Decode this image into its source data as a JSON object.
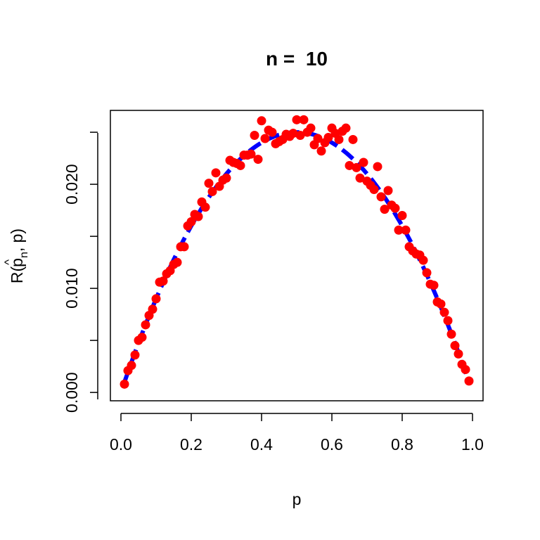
{
  "chart_data": {
    "type": "scatter",
    "title": "n =  10",
    "xlabel": "p",
    "ylabel": "R(p̂n, p)",
    "ylabel_parts": {
      "prefix": "R(",
      "symbol": "p",
      "hat": "^",
      "subscript": "n",
      "suffix": ", p)"
    },
    "xlim": [
      -0.03,
      1.03
    ],
    "ylim": [
      -0.0008,
      0.0271
    ],
    "x_ticks": [
      0.0,
      0.2,
      0.4,
      0.6,
      0.8,
      1.0
    ],
    "x_tick_labels": [
      "0.0",
      "0.2",
      "0.4",
      "0.6",
      "0.8",
      "1.0"
    ],
    "y_ticks": [
      0.0,
      0.005,
      0.01,
      0.015,
      0.02,
      0.025
    ],
    "y_tick_labels": [
      "0.000",
      "",
      "0.010",
      "",
      "0.020",
      ""
    ],
    "grid": false,
    "series": [
      {
        "kind": "points",
        "color": "#ff0000",
        "x": [
          0.01,
          0.02,
          0.03,
          0.04,
          0.05,
          0.06,
          0.07,
          0.08,
          0.09,
          0.1,
          0.11,
          0.12,
          0.13,
          0.14,
          0.15,
          0.16,
          0.17,
          0.18,
          0.19,
          0.2,
          0.21,
          0.22,
          0.23,
          0.24,
          0.25,
          0.26,
          0.27,
          0.28,
          0.29,
          0.3,
          0.31,
          0.32,
          0.33,
          0.34,
          0.35,
          0.36,
          0.37,
          0.38,
          0.39,
          0.4,
          0.41,
          0.42,
          0.43,
          0.44,
          0.45,
          0.46,
          0.47,
          0.48,
          0.49,
          0.5,
          0.51,
          0.52,
          0.53,
          0.54,
          0.55,
          0.56,
          0.57,
          0.58,
          0.59,
          0.6,
          0.61,
          0.62,
          0.63,
          0.64,
          0.65,
          0.66,
          0.67,
          0.68,
          0.69,
          0.7,
          0.71,
          0.72,
          0.73,
          0.74,
          0.75,
          0.76,
          0.77,
          0.78,
          0.79,
          0.8,
          0.81,
          0.82,
          0.83,
          0.84,
          0.85,
          0.86,
          0.87,
          0.88,
          0.89,
          0.9,
          0.91,
          0.92,
          0.93,
          0.94,
          0.95,
          0.96,
          0.97,
          0.98,
          0.99
        ],
        "y": [
          0.0008,
          0.0021,
          0.0026,
          0.0036,
          0.005,
          0.0053,
          0.0065,
          0.0074,
          0.008,
          0.009,
          0.0106,
          0.0107,
          0.0114,
          0.0117,
          0.0123,
          0.0125,
          0.014,
          0.014,
          0.016,
          0.0164,
          0.0171,
          0.0169,
          0.0183,
          0.0178,
          0.0201,
          0.0193,
          0.0211,
          0.0198,
          0.0204,
          0.0206,
          0.0223,
          0.0221,
          0.022,
          0.0218,
          0.0228,
          0.0228,
          0.0229,
          0.0247,
          0.0224,
          0.0261,
          0.0244,
          0.0252,
          0.025,
          0.0239,
          0.0241,
          0.0243,
          0.0248,
          0.0246,
          0.0249,
          0.0262,
          0.0247,
          0.0262,
          0.025,
          0.0254,
          0.0238,
          0.0244,
          0.0232,
          0.024,
          0.0245,
          0.0254,
          0.0249,
          0.0243,
          0.0251,
          0.0254,
          0.0218,
          0.0243,
          0.0216,
          0.0206,
          0.0221,
          0.0203,
          0.0199,
          0.0195,
          0.0217,
          0.0188,
          0.0176,
          0.0194,
          0.018,
          0.0177,
          0.0156,
          0.017,
          0.0156,
          0.014,
          0.0136,
          0.0133,
          0.0132,
          0.0127,
          0.0115,
          0.0104,
          0.0103,
          0.0087,
          0.0085,
          0.0077,
          0.0069,
          0.0056,
          0.0045,
          0.0037,
          0.0027,
          0.0022,
          0.0011
        ]
      },
      {
        "kind": "curve",
        "style": "dashed",
        "color": "#0000ff",
        "formula": "p*(1-p)/n",
        "n": 10
      }
    ]
  }
}
